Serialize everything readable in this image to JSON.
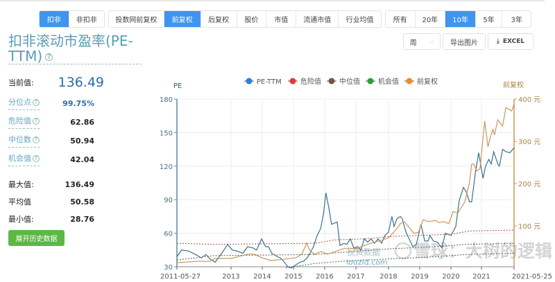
{
  "toolbar": {
    "deduct_group": [
      {
        "label": "扣非",
        "active": true
      },
      {
        "label": "非扣非",
        "active": false
      }
    ],
    "price_group": [
      {
        "label": "投数网前复权",
        "active": false
      },
      {
        "label": "前复权",
        "active": true
      },
      {
        "label": "后复权",
        "active": false
      },
      {
        "label": "股价",
        "active": false
      },
      {
        "label": "市值",
        "active": false
      },
      {
        "label": "流通市值",
        "active": false
      },
      {
        "label": "行业均值",
        "active": false
      }
    ],
    "range_group": [
      {
        "label": "所有",
        "active": false
      },
      {
        "label": "20年",
        "active": false
      },
      {
        "label": "10年",
        "active": true
      },
      {
        "label": "5年",
        "active": false
      },
      {
        "label": "3年",
        "active": false
      }
    ],
    "period_select": "周",
    "export_image": "导出图片",
    "export_excel": "EXCEL",
    "accent_color": "#3d95f0"
  },
  "title": "扣非滚动市盈率(PE-TTM)",
  "stats": {
    "current": {
      "label": "当前值:",
      "value": "136.49"
    },
    "percentile": {
      "label": "分位点",
      "value": "99.75%"
    },
    "danger": {
      "label": "危险值",
      "value": "62.86"
    },
    "median": {
      "label": "中位数",
      "value": "50.94"
    },
    "opportunity": {
      "label": "机会值",
      "value": "42.04"
    },
    "max": {
      "label": "最大值:",
      "value": "136.49"
    },
    "avg": {
      "label": "平均值",
      "value": "50.58"
    },
    "min": {
      "label": "最小值:",
      "value": "28.76"
    },
    "expand_button": "展开历史数据"
  },
  "watermarks": {
    "site": "投资数据",
    "url": "louzid.com",
    "xueqiu": "雪球：大树的逻辑"
  },
  "chart_data": {
    "type": "line",
    "legend_position": "top",
    "legend": [
      {
        "name": "PE-TTM",
        "color": "#2f7ed8"
      },
      {
        "name": "危险值",
        "color": "#e53935"
      },
      {
        "name": "中位值",
        "color": "#795548"
      },
      {
        "name": "机会值",
        "color": "#2e9e3a"
      },
      {
        "name": "前复权",
        "color": "#f08a24"
      }
    ],
    "ylabel": "PE",
    "y2label": "前复权",
    "ylim": [
      30,
      180
    ],
    "yticks": [
      30,
      60,
      90,
      120,
      150,
      180
    ],
    "y2lim": [
      0,
      400
    ],
    "y2ticks": [
      "100 元",
      "200 元",
      "300 元",
      "400 元"
    ],
    "y2tick_values": [
      100,
      200,
      300,
      400
    ],
    "xticks": [
      "2011-05-27",
      "2013",
      "2014",
      "2015",
      "2016",
      "2017",
      "2018",
      "2019",
      "2020",
      "2021",
      "2021-05-25"
    ],
    "grid": true,
    "series": [
      {
        "name": "PE-TTM",
        "axis": "left",
        "color": "#3a6f8f",
        "points": [
          [
            2011.4,
            39
          ],
          [
            2011.54,
            45
          ],
          [
            2011.75,
            44
          ],
          [
            2011.95,
            41
          ],
          [
            2012.12,
            38
          ],
          [
            2012.26,
            41
          ],
          [
            2012.38,
            37
          ],
          [
            2012.53,
            34
          ],
          [
            2012.65,
            39
          ],
          [
            2012.77,
            44
          ],
          [
            2012.9,
            50
          ],
          [
            2013.04,
            45
          ],
          [
            2013.2,
            44
          ],
          [
            2013.38,
            42
          ],
          [
            2013.53,
            48
          ],
          [
            2013.69,
            47
          ],
          [
            2013.82,
            45
          ],
          [
            2013.98,
            55
          ],
          [
            2014.11,
            48
          ],
          [
            2014.2,
            48
          ],
          [
            2014.31,
            42
          ],
          [
            2014.49,
            39
          ],
          [
            2014.58,
            38
          ],
          [
            2014.71,
            34
          ],
          [
            2014.82,
            30
          ],
          [
            2014.93,
            29
          ],
          [
            2015.04,
            31
          ],
          [
            2015.2,
            34
          ],
          [
            2015.33,
            35
          ],
          [
            2015.44,
            38
          ],
          [
            2015.53,
            42
          ],
          [
            2015.64,
            48
          ],
          [
            2015.76,
            58
          ],
          [
            2015.87,
            64
          ],
          [
            2015.96,
            77
          ],
          [
            2016.04,
            96
          ],
          [
            2016.13,
            83
          ],
          [
            2016.22,
            68
          ],
          [
            2016.31,
            69
          ],
          [
            2016.4,
            70
          ],
          [
            2016.49,
            49
          ],
          [
            2016.62,
            51
          ],
          [
            2016.71,
            50
          ],
          [
            2016.82,
            55
          ],
          [
            2016.93,
            47
          ],
          [
            2017.06,
            48
          ],
          [
            2017.15,
            45
          ],
          [
            2017.26,
            55
          ],
          [
            2017.36,
            52
          ],
          [
            2017.47,
            55
          ],
          [
            2017.57,
            51
          ],
          [
            2017.68,
            55
          ],
          [
            2017.79,
            51
          ],
          [
            2017.89,
            58
          ],
          [
            2018.0,
            61
          ],
          [
            2018.11,
            75
          ],
          [
            2018.18,
            66
          ],
          [
            2018.27,
            73
          ],
          [
            2018.38,
            75
          ],
          [
            2018.44,
            73
          ],
          [
            2018.56,
            61
          ],
          [
            2018.78,
            48
          ],
          [
            2018.89,
            50
          ],
          [
            2019.04,
            68
          ],
          [
            2019.16,
            53
          ],
          [
            2019.27,
            53
          ],
          [
            2019.33,
            58
          ],
          [
            2019.44,
            53
          ],
          [
            2019.56,
            52
          ],
          [
            2019.71,
            47
          ],
          [
            2019.82,
            60
          ],
          [
            2020.0,
            58
          ],
          [
            2020.16,
            66
          ],
          [
            2020.27,
            89
          ],
          [
            2020.41,
            101
          ],
          [
            2020.5,
            97
          ],
          [
            2020.61,
            88
          ],
          [
            2020.68,
            88
          ],
          [
            2020.8,
            114
          ],
          [
            2020.91,
            132
          ],
          [
            2021.02,
            109
          ],
          [
            2021.05,
            120
          ],
          [
            2021.09,
            126
          ],
          [
            2021.12,
            122
          ],
          [
            2021.15,
            133
          ],
          [
            2021.2,
            122
          ],
          [
            2021.22,
            120
          ],
          [
            2021.26,
            135
          ],
          [
            2021.3,
            133
          ],
          [
            2021.35,
            132
          ],
          [
            2021.4,
            136.49
          ]
        ]
      },
      {
        "name": "危险值",
        "axis": "left",
        "color": "#a0524a",
        "dashed": true,
        "points": [
          [
            2011.4,
            51
          ],
          [
            2012.5,
            50
          ],
          [
            2015.7,
            51
          ],
          [
            2016.3,
            54
          ],
          [
            2017.3,
            55
          ],
          [
            2018,
            57
          ],
          [
            2019,
            58
          ],
          [
            2020,
            59
          ],
          [
            2020.6,
            62
          ],
          [
            2021.4,
            62.86
          ]
        ]
      },
      {
        "name": "中位值",
        "axis": "left",
        "color": "#555555",
        "dashed": true,
        "points": [
          [
            2011.4,
            36
          ],
          [
            2012.5,
            40
          ],
          [
            2015.7,
            41
          ],
          [
            2016.6,
            43
          ],
          [
            2018,
            46
          ],
          [
            2019.5,
            48
          ],
          [
            2020.5,
            50
          ],
          [
            2021.4,
            50.94
          ]
        ]
      },
      {
        "name": "机会值",
        "axis": "left",
        "color": "#3d6b45",
        "dashed": true,
        "points": [
          [
            2014.75,
            29
          ],
          [
            2015.7,
            33
          ],
          [
            2016.6,
            35
          ],
          [
            2018,
            37
          ],
          [
            2019.5,
            39
          ],
          [
            2020.5,
            41
          ],
          [
            2021.4,
            42.04
          ]
        ]
      },
      {
        "name": "前复权",
        "axis": "right",
        "color": "#c8975a",
        "points": [
          [
            2011.4,
            13
          ],
          [
            2012.0,
            16
          ],
          [
            2012.38,
            16
          ],
          [
            2012.53,
            23
          ],
          [
            2013.0,
            23
          ],
          [
            2013.53,
            33
          ],
          [
            2013.75,
            33
          ],
          [
            2013.98,
            25
          ],
          [
            2014.27,
            18
          ],
          [
            2014.71,
            21
          ],
          [
            2015.09,
            25
          ],
          [
            2015.27,
            33
          ],
          [
            2015.42,
            59
          ],
          [
            2015.53,
            41
          ],
          [
            2015.67,
            33
          ],
          [
            2015.89,
            39
          ],
          [
            2016.09,
            33
          ],
          [
            2016.33,
            39
          ],
          [
            2016.64,
            47
          ],
          [
            2017.09,
            47
          ],
          [
            2016.93,
            44
          ],
          [
            2017.38,
            57
          ],
          [
            2017.79,
            66
          ],
          [
            2018.0,
            72
          ],
          [
            2018.22,
            89
          ],
          [
            2018.38,
            105
          ],
          [
            2018.51,
            110
          ],
          [
            2018.82,
            82
          ],
          [
            2018.96,
            85
          ],
          [
            2019.11,
            115
          ],
          [
            2019.27,
            110
          ],
          [
            2019.49,
            113
          ],
          [
            2019.62,
            108
          ],
          [
            2019.78,
            110
          ],
          [
            2019.93,
            105
          ],
          [
            2020.07,
            134
          ],
          [
            2020.22,
            130
          ],
          [
            2020.45,
            156
          ],
          [
            2020.61,
            203
          ],
          [
            2020.68,
            246
          ],
          [
            2020.75,
            246
          ],
          [
            2020.84,
            230
          ],
          [
            2020.95,
            235
          ],
          [
            2021.01,
            290
          ],
          [
            2021.04,
            348
          ],
          [
            2021.08,
            287
          ],
          [
            2021.11,
            311
          ],
          [
            2021.14,
            328
          ],
          [
            2021.16,
            315
          ],
          [
            2021.2,
            351
          ],
          [
            2021.26,
            336
          ],
          [
            2021.3,
            380
          ],
          [
            2021.37,
            372
          ],
          [
            2021.4,
            388
          ]
        ]
      }
    ]
  }
}
